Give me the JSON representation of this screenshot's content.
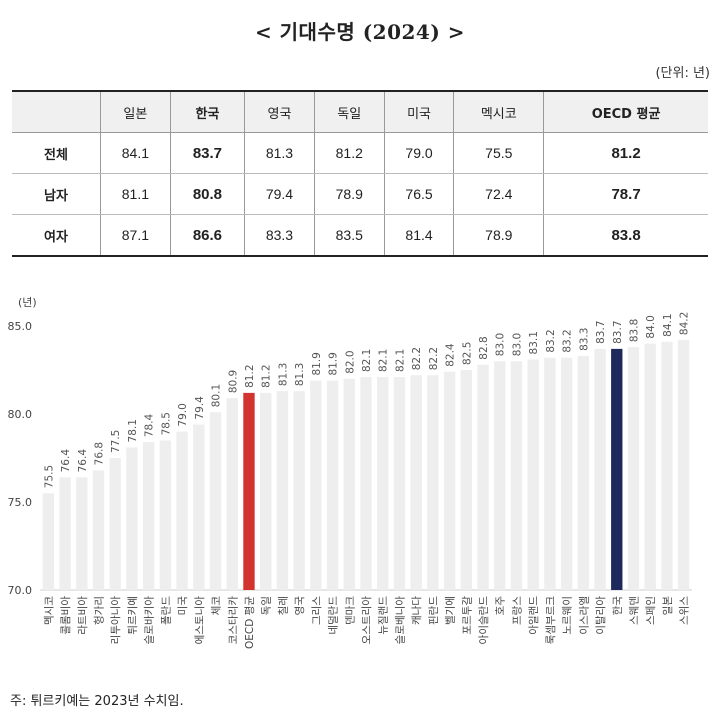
{
  "title": "< 기대수명 (2024) >",
  "unit_note": "(단위: 년)",
  "table": {
    "columns": [
      "일본",
      "한국",
      "영국",
      "독일",
      "미국",
      "멕시코",
      "OECD 평균"
    ],
    "highlight_columns": [
      1,
      6
    ],
    "rows": [
      {
        "label": "전체",
        "values": [
          "84.1",
          "83.7",
          "81.3",
          "81.2",
          "79.0",
          "75.5",
          "81.2"
        ]
      },
      {
        "label": "남자",
        "values": [
          "81.1",
          "80.8",
          "79.4",
          "78.9",
          "76.5",
          "72.4",
          "78.7"
        ]
      },
      {
        "label": "여자",
        "values": [
          "87.1",
          "86.6",
          "83.3",
          "83.5",
          "81.4",
          "78.9",
          "83.8"
        ]
      }
    ]
  },
  "chart_data": {
    "type": "bar",
    "ylabel": "(년)",
    "ylim": [
      70,
      85
    ],
    "yticks": [
      "70.0",
      "75.0",
      "80.0",
      "85.0"
    ],
    "categories": [
      "멕시코",
      "콜롬비아",
      "라트비아",
      "헝가리",
      "리투아니아",
      "튀르키예",
      "슬로바키아",
      "폴란드",
      "미국",
      "에스토니아",
      "체코",
      "코스타리카",
      "OECD 평균",
      "독일",
      "칠레",
      "영국",
      "그리스",
      "네덜란드",
      "덴마크",
      "오스트리아",
      "뉴질랜드",
      "슬로베니아",
      "캐나다",
      "핀란드",
      "벨기에",
      "포르투갈",
      "아이슬란드",
      "호주",
      "프랑스",
      "아일랜드",
      "룩셈부르크",
      "노르웨이",
      "이스라엘",
      "이탈리아",
      "한국",
      "스웨덴",
      "스페인",
      "일본",
      "스위스"
    ],
    "values": [
      75.5,
      76.4,
      76.4,
      76.8,
      77.5,
      78.1,
      78.4,
      78.5,
      79.0,
      79.4,
      80.1,
      80.9,
      81.2,
      81.2,
      81.3,
      81.3,
      81.9,
      81.9,
      82.0,
      82.1,
      82.1,
      82.1,
      82.2,
      82.2,
      82.4,
      82.5,
      82.8,
      83.0,
      83.0,
      83.1,
      83.2,
      83.2,
      83.3,
      83.7,
      83.7,
      83.8,
      84.0,
      84.1,
      84.2
    ],
    "highlight": {
      "OECD 평균": "#d2332e",
      "한국": "#1f2a5c"
    },
    "default_color": "#eeeeee",
    "grid": false
  },
  "footnote": "주: 튀르키예는 2023년 수치임."
}
